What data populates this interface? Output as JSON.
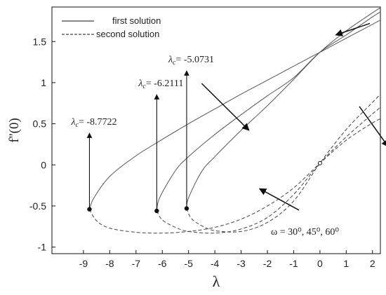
{
  "chart_data": {
    "type": "line",
    "xlabel": "λ",
    "ylabel": "f''(0)",
    "xlim": [
      -10.2,
      2.3
    ],
    "ylim": [
      -1.08,
      1.92
    ],
    "x_ticks": [
      -9,
      -8,
      -7,
      -6,
      -5,
      -4,
      -3,
      -2,
      -1,
      0,
      1,
      2
    ],
    "y_ticks": [
      -1,
      -0.5,
      0,
      0.5,
      1,
      1.5
    ],
    "x_tick_labels": [
      "-9",
      "-8",
      "-7",
      "-6",
      "-5",
      "-4",
      "-3",
      "-2",
      "-1",
      "0",
      "1",
      "2"
    ],
    "y_tick_labels": [
      "-1",
      "-0.5",
      "0",
      "0.5",
      "1",
      "1.5"
    ],
    "legend": {
      "position": "top-left",
      "entries": [
        {
          "label": "first solution",
          "style": "solid"
        },
        {
          "label": "second solution",
          "style": "dashed"
        }
      ]
    },
    "critical_points": [
      {
        "omega": "30°",
        "lambda_c": -8.7722,
        "label_prefix": "λ",
        "label_sub": "c",
        "label_value": "= -8.7722",
        "f": -0.54
      },
      {
        "omega": "45°",
        "lambda_c": -6.2111,
        "label_prefix": "λ",
        "label_sub": "c",
        "label_value": "= -6.2111",
        "f": -0.56
      },
      {
        "omega": "60°",
        "lambda_c": -5.0731,
        "label_prefix": "λ",
        "label_sub": "c",
        "label_value": "= -5.0731",
        "f": -0.53
      }
    ],
    "series": [
      {
        "omega": "30°",
        "branch": "first",
        "style": "solid",
        "x": [
          -8.7722,
          -8.6,
          -8,
          -7,
          -6,
          -5,
          -4,
          -3,
          -2,
          -1,
          0,
          1,
          2,
          2.3
        ],
        "y": [
          -0.54,
          -0.4,
          -0.14,
          0.11,
          0.31,
          0.5,
          0.68,
          0.86,
          1.03,
          1.2,
          1.37,
          1.54,
          1.71,
          1.76
        ]
      },
      {
        "omega": "45°",
        "branch": "first",
        "style": "solid",
        "x": [
          -6.2111,
          -6.1,
          -5.5,
          -5,
          -4,
          -3,
          -2,
          -1,
          0,
          1,
          2,
          2.3
        ],
        "y": [
          -0.56,
          -0.4,
          -0.07,
          0.1,
          0.37,
          0.61,
          0.84,
          1.06,
          1.37,
          1.58,
          1.8,
          1.86
        ]
      },
      {
        "omega": "60°",
        "branch": "first",
        "style": "solid",
        "x": [
          -5.0731,
          -5.0,
          -4.5,
          -4,
          -3,
          -2,
          -1,
          0,
          1,
          2,
          2.3
        ],
        "y": [
          -0.53,
          -0.4,
          -0.08,
          0.1,
          0.42,
          0.72,
          1.04,
          1.37,
          1.63,
          1.85,
          1.91
        ]
      },
      {
        "omega": "30°",
        "branch": "second",
        "style": "dashed",
        "x": [
          -8.7722,
          -8.5,
          -8,
          -7,
          -6,
          -5,
          -4,
          -3,
          -2,
          -1,
          0,
          1,
          2,
          2.3
        ],
        "y": [
          -0.54,
          -0.68,
          -0.77,
          -0.82,
          -0.83,
          -0.81,
          -0.76,
          -0.66,
          -0.5,
          -0.28,
          0.02,
          0.3,
          0.51,
          0.56
        ]
      },
      {
        "omega": "45°",
        "branch": "second",
        "style": "dashed",
        "x": [
          -6.2111,
          -6.0,
          -5.5,
          -5,
          -4,
          -3,
          -2,
          -1,
          0,
          1,
          2,
          2.3
        ],
        "y": [
          -0.56,
          -0.67,
          -0.76,
          -0.81,
          -0.83,
          -0.78,
          -0.64,
          -0.36,
          0.02,
          0.34,
          0.62,
          0.7
        ]
      },
      {
        "omega": "60°",
        "branch": "second",
        "style": "dashed",
        "x": [
          -5.0731,
          -4.9,
          -4.5,
          -4,
          -3,
          -2,
          -1,
          0,
          1,
          2,
          2.3
        ],
        "y": [
          -0.53,
          -0.65,
          -0.74,
          -0.8,
          -0.81,
          -0.7,
          -0.44,
          0.02,
          0.43,
          0.76,
          0.86
        ]
      }
    ],
    "intersection_points": [
      {
        "x": 0,
        "y": 1.37,
        "marker": "none"
      },
      {
        "x": 0,
        "y": 0.02,
        "marker": "open-circle"
      }
    ],
    "annotations": {
      "omega_text": "ω = 30⁰, 45⁰, 60⁰",
      "arrows": [
        {
          "from": [
            1.9,
            1.72
          ],
          "to": [
            0.6,
            1.58
          ],
          "meaning": "increasing-omega-first"
        },
        {
          "from": [
            -4.5,
            0.99
          ],
          "to": [
            -2.7,
            0.42
          ],
          "meaning": "increasing-omega-first"
        },
        {
          "from": [
            1.5,
            0.71
          ],
          "to": [
            2.6,
            0.22
          ],
          "meaning": "increasing-omega-second"
        },
        {
          "from": [
            -0.8,
            -0.55
          ],
          "to": [
            -2.3,
            -0.29
          ],
          "meaning": "increasing-omega-second"
        }
      ]
    }
  }
}
